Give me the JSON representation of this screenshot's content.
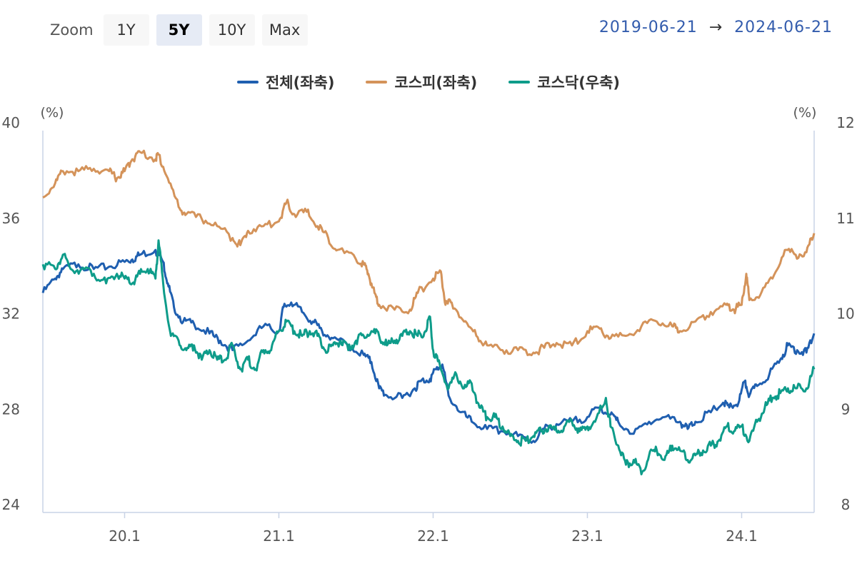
{
  "zoom": {
    "label": "Zoom",
    "buttons": [
      {
        "label": "1Y",
        "active": false
      },
      {
        "label": "5Y",
        "active": true
      },
      {
        "label": "10Y",
        "active": false
      },
      {
        "label": "Max",
        "active": false
      }
    ]
  },
  "range": {
    "start": "2019-06-21",
    "arrow": "→",
    "end": "2024-06-21"
  },
  "chart_data": {
    "type": "line",
    "x_start": 2019.47,
    "x_end": 2024.47,
    "x_ticks": [
      {
        "label": "20.1",
        "value": 2020.0
      },
      {
        "label": "21.1",
        "value": 2021.0
      },
      {
        "label": "22.1",
        "value": 2022.0
      },
      {
        "label": "23.1",
        "value": 2023.0
      },
      {
        "label": "24.1",
        "value": 2024.0
      }
    ],
    "y_left": {
      "unit": "(%)",
      "range": [
        24,
        40
      ],
      "ticks": [
        "40",
        "36",
        "32",
        "28",
        "24"
      ]
    },
    "y_right": {
      "unit": "(%)",
      "range": [
        8,
        12
      ],
      "ticks": [
        "12",
        "11",
        "10",
        "9",
        "8"
      ]
    },
    "series": [
      {
        "name": "전체(좌축)",
        "axis": "left",
        "color": "#1f5fb0",
        "points": [
          [
            2019.47,
            33.2
          ],
          [
            2019.55,
            33.8
          ],
          [
            2019.6,
            34.2
          ],
          [
            2019.7,
            34.4
          ],
          [
            2019.8,
            34.2
          ],
          [
            2019.9,
            34.3
          ],
          [
            2020.0,
            34.5
          ],
          [
            2020.05,
            34.6
          ],
          [
            2020.1,
            34.8
          ],
          [
            2020.2,
            35.0
          ],
          [
            2020.25,
            34.5
          ],
          [
            2020.28,
            33.6
          ],
          [
            2020.32,
            32.6
          ],
          [
            2020.38,
            32.0
          ],
          [
            2020.45,
            31.9
          ],
          [
            2020.55,
            31.5
          ],
          [
            2020.62,
            31.2
          ],
          [
            2020.7,
            30.8
          ],
          [
            2020.8,
            31.2
          ],
          [
            2020.9,
            31.8
          ],
          [
            2021.0,
            31.6
          ],
          [
            2021.03,
            32.6
          ],
          [
            2021.08,
            32.8
          ],
          [
            2021.15,
            32.4
          ],
          [
            2021.22,
            32.0
          ],
          [
            2021.28,
            31.6
          ],
          [
            2021.35,
            31.3
          ],
          [
            2021.45,
            31.0
          ],
          [
            2021.55,
            30.6
          ],
          [
            2021.6,
            30.3
          ],
          [
            2021.65,
            29.2
          ],
          [
            2021.7,
            28.9
          ],
          [
            2021.8,
            28.8
          ],
          [
            2021.88,
            29.2
          ],
          [
            2021.92,
            29.5
          ],
          [
            2021.98,
            29.6
          ],
          [
            2022.02,
            30.0
          ],
          [
            2022.06,
            30.2
          ],
          [
            2022.1,
            28.9
          ],
          [
            2022.18,
            28.2
          ],
          [
            2022.25,
            27.8
          ],
          [
            2022.35,
            27.5
          ],
          [
            2022.45,
            27.4
          ],
          [
            2022.55,
            27.2
          ],
          [
            2022.65,
            27.0
          ],
          [
            2022.72,
            27.5
          ],
          [
            2022.8,
            27.7
          ],
          [
            2022.9,
            27.8
          ],
          [
            2023.0,
            28.0
          ],
          [
            2023.08,
            28.4
          ],
          [
            2023.15,
            28.1
          ],
          [
            2023.2,
            27.8
          ],
          [
            2023.3,
            27.3
          ],
          [
            2023.4,
            27.8
          ],
          [
            2023.5,
            28.0
          ],
          [
            2023.6,
            27.8
          ],
          [
            2023.65,
            27.5
          ],
          [
            2023.7,
            27.8
          ],
          [
            2023.8,
            28.2
          ],
          [
            2023.88,
            28.6
          ],
          [
            2023.92,
            28.4
          ],
          [
            2023.98,
            28.6
          ],
          [
            2024.02,
            29.5
          ],
          [
            2024.05,
            28.9
          ],
          [
            2024.1,
            29.3
          ],
          [
            2024.18,
            29.8
          ],
          [
            2024.25,
            30.4
          ],
          [
            2024.3,
            31.0
          ],
          [
            2024.36,
            30.8
          ],
          [
            2024.42,
            30.7
          ],
          [
            2024.47,
            31.5
          ]
        ]
      },
      {
        "name": "코스피(좌축)",
        "axis": "left",
        "color": "#d4935a",
        "points": [
          [
            2019.47,
            37.2
          ],
          [
            2019.55,
            37.8
          ],
          [
            2019.6,
            38.3
          ],
          [
            2019.7,
            38.3
          ],
          [
            2019.8,
            38.4
          ],
          [
            2019.9,
            38.3
          ],
          [
            2019.95,
            38.0
          ],
          [
            2020.0,
            38.3
          ],
          [
            2020.05,
            38.8
          ],
          [
            2020.1,
            39.1
          ],
          [
            2020.2,
            38.8
          ],
          [
            2020.22,
            39.0
          ],
          [
            2020.28,
            38.0
          ],
          [
            2020.35,
            36.8
          ],
          [
            2020.4,
            36.5
          ],
          [
            2020.5,
            36.3
          ],
          [
            2020.6,
            36.0
          ],
          [
            2020.7,
            35.5
          ],
          [
            2020.75,
            35.2
          ],
          [
            2020.8,
            35.8
          ],
          [
            2020.9,
            36.0
          ],
          [
            2021.0,
            36.2
          ],
          [
            2021.05,
            37.0
          ],
          [
            2021.1,
            36.5
          ],
          [
            2021.18,
            36.6
          ],
          [
            2021.25,
            36.0
          ],
          [
            2021.32,
            35.5
          ],
          [
            2021.38,
            35.0
          ],
          [
            2021.5,
            34.6
          ],
          [
            2021.55,
            34.4
          ],
          [
            2021.58,
            34.0
          ],
          [
            2021.62,
            33.2
          ],
          [
            2021.65,
            32.7
          ],
          [
            2021.75,
            32.5
          ],
          [
            2021.85,
            32.5
          ],
          [
            2021.9,
            33.2
          ],
          [
            2022.0,
            33.8
          ],
          [
            2022.05,
            34.1
          ],
          [
            2022.08,
            32.7
          ],
          [
            2022.12,
            32.8
          ],
          [
            2022.2,
            32.0
          ],
          [
            2022.28,
            31.4
          ],
          [
            2022.35,
            31.0
          ],
          [
            2022.45,
            30.8
          ],
          [
            2022.55,
            30.8
          ],
          [
            2022.65,
            30.7
          ],
          [
            2022.72,
            30.9
          ],
          [
            2022.8,
            31.1
          ],
          [
            2022.9,
            31.0
          ],
          [
            2023.0,
            31.6
          ],
          [
            2023.08,
            31.7
          ],
          [
            2023.15,
            31.3
          ],
          [
            2023.25,
            31.4
          ],
          [
            2023.35,
            31.8
          ],
          [
            2023.45,
            32.0
          ],
          [
            2023.55,
            31.8
          ],
          [
            2023.6,
            31.6
          ],
          [
            2023.7,
            32.0
          ],
          [
            2023.8,
            32.4
          ],
          [
            2023.9,
            32.7
          ],
          [
            2023.95,
            32.5
          ],
          [
            2024.0,
            32.7
          ],
          [
            2024.03,
            34.0
          ],
          [
            2024.05,
            32.9
          ],
          [
            2024.12,
            33.1
          ],
          [
            2024.2,
            33.8
          ],
          [
            2024.28,
            35.0
          ],
          [
            2024.35,
            34.8
          ],
          [
            2024.42,
            34.9
          ],
          [
            2024.47,
            35.7
          ]
        ]
      },
      {
        "name": "코스닥(우축)",
        "axis": "right",
        "color": "#0e9c8a",
        "points": [
          [
            2019.47,
            10.6
          ],
          [
            2019.55,
            10.55
          ],
          [
            2019.6,
            10.7
          ],
          [
            2019.65,
            10.55
          ],
          [
            2019.72,
            10.55
          ],
          [
            2019.8,
            10.5
          ],
          [
            2019.88,
            10.4
          ],
          [
            2019.95,
            10.5
          ],
          [
            2020.0,
            10.45
          ],
          [
            2020.05,
            10.4
          ],
          [
            2020.1,
            10.5
          ],
          [
            2020.15,
            10.55
          ],
          [
            2020.2,
            10.45
          ],
          [
            2020.22,
            10.85
          ],
          [
            2020.25,
            10.4
          ],
          [
            2020.3,
            9.85
          ],
          [
            2020.35,
            9.8
          ],
          [
            2020.4,
            9.7
          ],
          [
            2020.45,
            9.75
          ],
          [
            2020.5,
            9.6
          ],
          [
            2020.55,
            9.7
          ],
          [
            2020.6,
            9.6
          ],
          [
            2020.65,
            9.6
          ],
          [
            2020.7,
            9.75
          ],
          [
            2020.75,
            9.5
          ],
          [
            2020.8,
            9.6
          ],
          [
            2020.85,
            9.5
          ],
          [
            2020.9,
            9.7
          ],
          [
            2020.95,
            9.7
          ],
          [
            2021.0,
            9.9
          ],
          [
            2021.05,
            10.0
          ],
          [
            2021.1,
            9.9
          ],
          [
            2021.15,
            9.85
          ],
          [
            2021.2,
            9.9
          ],
          [
            2021.25,
            9.85
          ],
          [
            2021.3,
            9.7
          ],
          [
            2021.35,
            9.75
          ],
          [
            2021.4,
            9.8
          ],
          [
            2021.45,
            9.7
          ],
          [
            2021.5,
            9.8
          ],
          [
            2021.55,
            9.85
          ],
          [
            2021.6,
            9.9
          ],
          [
            2021.65,
            9.85
          ],
          [
            2021.7,
            9.75
          ],
          [
            2021.75,
            9.8
          ],
          [
            2021.8,
            9.85
          ],
          [
            2021.85,
            9.9
          ],
          [
            2021.9,
            9.85
          ],
          [
            2021.95,
            9.9
          ],
          [
            2021.98,
            10.05
          ],
          [
            2022.0,
            9.7
          ],
          [
            2022.05,
            9.5
          ],
          [
            2022.1,
            9.3
          ],
          [
            2022.15,
            9.45
          ],
          [
            2022.2,
            9.3
          ],
          [
            2022.25,
            9.35
          ],
          [
            2022.3,
            9.1
          ],
          [
            2022.35,
            9.0
          ],
          [
            2022.4,
            9.0
          ],
          [
            2022.45,
            8.9
          ],
          [
            2022.5,
            8.8
          ],
          [
            2022.55,
            8.75
          ],
          [
            2022.6,
            8.75
          ],
          [
            2022.65,
            8.8
          ],
          [
            2022.7,
            8.85
          ],
          [
            2022.75,
            8.9
          ],
          [
            2022.8,
            8.85
          ],
          [
            2022.85,
            8.9
          ],
          [
            2022.9,
            8.95
          ],
          [
            2022.95,
            8.85
          ],
          [
            2023.0,
            8.9
          ],
          [
            2023.05,
            8.95
          ],
          [
            2023.12,
            9.2
          ],
          [
            2023.15,
            8.9
          ],
          [
            2023.2,
            8.7
          ],
          [
            2023.25,
            8.5
          ],
          [
            2023.3,
            8.55
          ],
          [
            2023.35,
            8.4
          ],
          [
            2023.4,
            8.6
          ],
          [
            2023.45,
            8.65
          ],
          [
            2023.5,
            8.55
          ],
          [
            2023.55,
            8.7
          ],
          [
            2023.6,
            8.65
          ],
          [
            2023.65,
            8.55
          ],
          [
            2023.7,
            8.6
          ],
          [
            2023.75,
            8.65
          ],
          [
            2023.8,
            8.7
          ],
          [
            2023.85,
            8.75
          ],
          [
            2023.9,
            8.9
          ],
          [
            2023.95,
            8.85
          ],
          [
            2024.0,
            8.9
          ],
          [
            2024.05,
            8.75
          ],
          [
            2024.1,
            8.95
          ],
          [
            2024.15,
            9.1
          ],
          [
            2024.2,
            9.2
          ],
          [
            2024.25,
            9.25
          ],
          [
            2024.3,
            9.3
          ],
          [
            2024.35,
            9.3
          ],
          [
            2024.42,
            9.3
          ],
          [
            2024.47,
            9.5
          ]
        ]
      }
    ]
  }
}
